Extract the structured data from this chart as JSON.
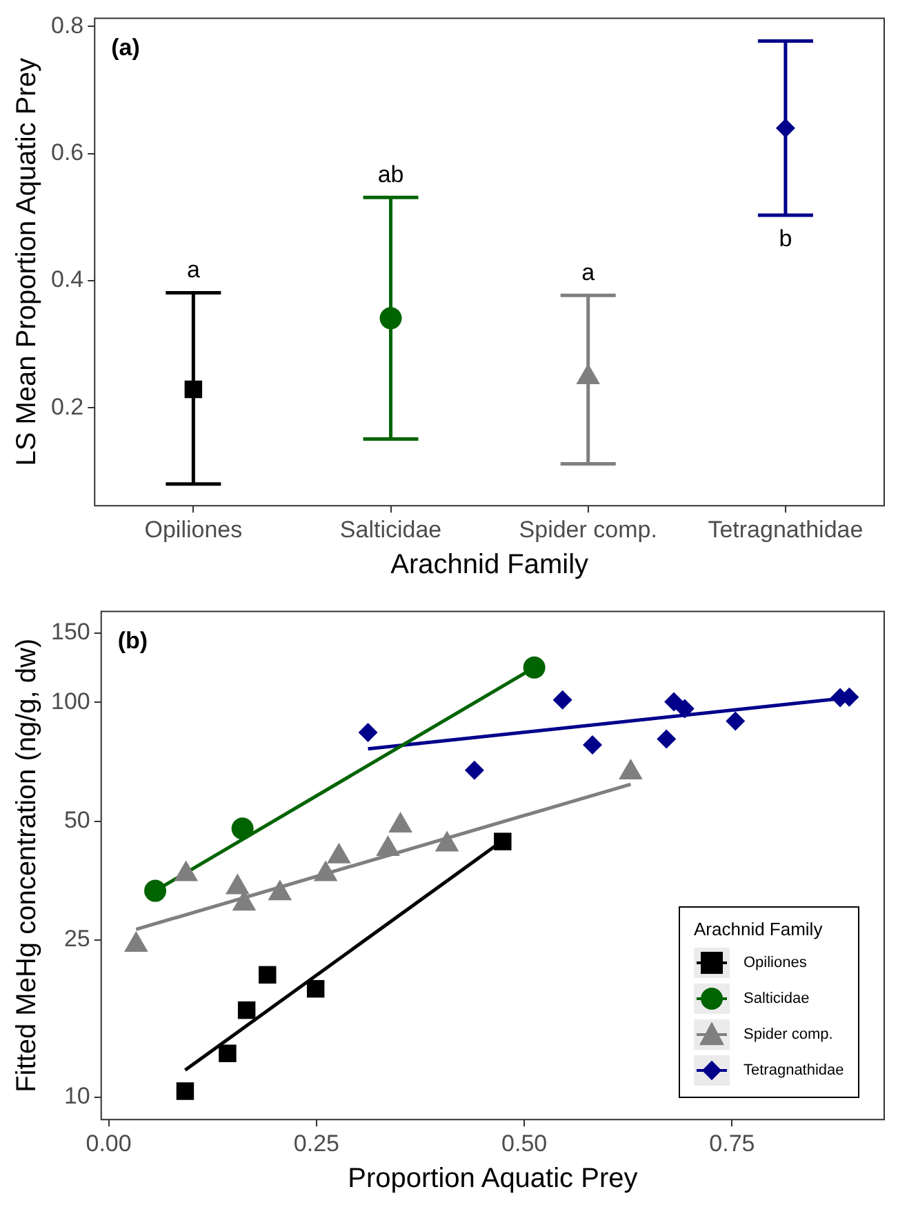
{
  "chart_data": [
    {
      "type": "scatter",
      "xlabel": "Arachnid Family",
      "ylabel": "LS Mean Proportion Aquatic Prey",
      "categories": [
        "Opiliones",
        "Salticidae",
        "Spider comp.",
        "Tetragnathidae"
      ],
      "ylim": [
        0.046,
        0.813
      ],
      "yticks": [
        0.2,
        0.4,
        0.6,
        0.8
      ],
      "grid": false,
      "legend": false,
      "series": [
        {
          "color": "#000000",
          "marker": "square",
          "values": [
            0.229,
            null,
            null,
            null
          ],
          "errors": [
            [
              0.08,
              0.381
            ],
            null,
            null,
            null
          ]
        },
        {
          "color": "#006400",
          "marker": "circle",
          "values": [
            null,
            0.341,
            null,
            null
          ],
          "errors": [
            null,
            [
              0.151,
              0.531
            ],
            null,
            null
          ]
        },
        {
          "color": "#7f7f7f",
          "marker": "triangle",
          "values": [
            null,
            null,
            0.248,
            null
          ],
          "errors": [
            null,
            null,
            [
              0.112,
              0.377
            ],
            null
          ]
        },
        {
          "color": "#00008b",
          "marker": "diamond",
          "values": [
            null,
            null,
            null,
            0.64
          ],
          "errors": [
            null,
            null,
            null,
            [
              0.503,
              0.777
            ]
          ]
        }
      ],
      "annotations": [
        "(a)",
        "a",
        "ab",
        "a",
        "b"
      ]
    },
    {
      "type": "scatter",
      "xlabel": "Proportion Aquatic Prey",
      "ylabel": "Fitted MeHg concentration (ng/g, dw)",
      "legend_title": "Arachnid Family",
      "legend": "bottom right",
      "log": "y",
      "grid": false,
      "xlim": [
        -0.009,
        0.933
      ],
      "xticks": [
        {
          "value": 0,
          "label": "0.00"
        },
        {
          "value": 0.25,
          "label": "0.25"
        },
        {
          "value": 0.5,
          "label": "0.50"
        },
        {
          "value": 0.75,
          "label": "0.75"
        }
      ],
      "ylim": [
        8.77,
        170
      ],
      "yticks": [
        10,
        25,
        50,
        100,
        150
      ],
      "series": [
        {
          "name": "Opiliones",
          "color": "#000000",
          "marker": "square",
          "x": [
            0.092,
            0.143,
            0.166,
            0.191,
            0.249,
            0.474
          ],
          "values": [
            10.35,
            12.9,
            16.6,
            20.4,
            18.8,
            44.4
          ]
        },
        {
          "name": "Salticidae",
          "color": "#006400",
          "marker": "circle",
          "x": [
            0.056,
            0.161,
            0.512
          ],
          "values": [
            33.3,
            47.9,
            122.5
          ]
        },
        {
          "name": "Spider comp.",
          "color": "#7f7f7f",
          "marker": "triangle",
          "x": [
            0.033,
            0.093,
            0.155,
            0.163,
            0.206,
            0.261,
            0.277,
            0.336,
            0.351,
            0.407,
            0.628
          ],
          "values": [
            24.3,
            36.7,
            34.0,
            30.9,
            32.8,
            36.7,
            40.7,
            42.5,
            48.7,
            43.6,
            66.4
          ]
        },
        {
          "name": "Tetragnathidae",
          "color": "#00008b",
          "marker": "diamond",
          "x": [
            0.312,
            0.44,
            0.546,
            0.582,
            0.671,
            0.68,
            0.693,
            0.754,
            0.88,
            0.891
          ],
          "values": [
            83.9,
            67.3,
            101.4,
            78.0,
            80.7,
            100.3,
            96.4,
            89.6,
            102.8,
            103.1
          ]
        },
        {
          "type": "line",
          "color": "#000000",
          "x": [
            0.092,
            0.47
          ],
          "values": [
            11.7,
            44.0
          ]
        },
        {
          "type": "line",
          "color": "#006400",
          "x": [
            0.056,
            0.512
          ],
          "values": [
            33.3,
            122.5
          ]
        },
        {
          "type": "line",
          "color": "#7f7f7f",
          "x": [
            0.033,
            0.628
          ],
          "values": [
            26.6,
            62.0
          ]
        },
        {
          "type": "line",
          "color": "#00008b",
          "x": [
            0.312,
            0.891
          ],
          "values": [
            76.2,
            102.8
          ]
        }
      ],
      "annotations": [
        "(b)"
      ]
    }
  ]
}
